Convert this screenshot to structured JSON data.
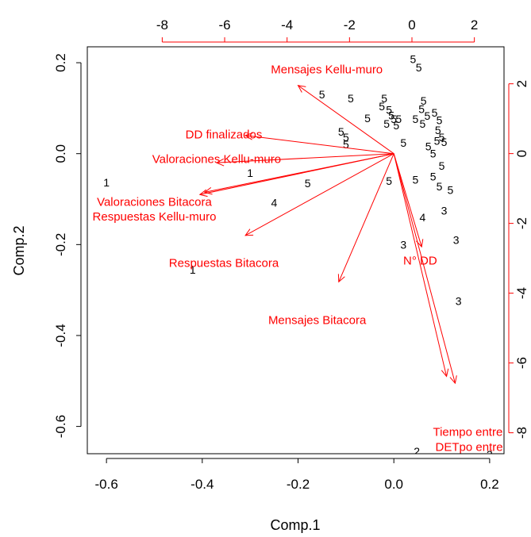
{
  "chart_data": {
    "type": "scatter",
    "subtype": "biplot",
    "xlabel": "Comp.1",
    "ylabel": "Comp.2",
    "xlim": [
      -0.64,
      0.23
    ],
    "ylim": [
      -0.66,
      0.235
    ],
    "x_ticks": [
      "-0.6",
      "-0.4",
      "-0.2",
      "0.0",
      "0.2"
    ],
    "x_tick_values": [
      -0.6,
      -0.4,
      -0.2,
      0.0,
      0.2
    ],
    "y_ticks": [
      "-0.6",
      "-0.4",
      "-0.2",
      "0.0",
      "0.2"
    ],
    "y_tick_values": [
      -0.6,
      -0.4,
      -0.2,
      0.0,
      0.2
    ],
    "top_ticks": [
      "-8",
      "-6",
      "-4",
      "-2",
      "0",
      "2"
    ],
    "top_tick_values": [
      -8,
      -6,
      -4,
      -2,
      0,
      2
    ],
    "right_ticks": [
      "2",
      "0",
      "-2",
      "-4",
      "-6",
      "-8"
    ],
    "right_tick_values": [
      2,
      0,
      -2,
      -4,
      -6,
      -8
    ],
    "secondary_xlim": [
      -10.4,
      2.95
    ],
    "secondary_ylim": [
      -8.6,
      3.06
    ],
    "grid": false,
    "colors": {
      "observations": "#000000",
      "variables": "#ff0000"
    },
    "observations": [
      {
        "label": "1",
        "x": -0.6,
        "y": -0.063
      },
      {
        "label": "1",
        "x": -0.3,
        "y": -0.042
      },
      {
        "label": "1",
        "x": -0.42,
        "y": -0.255
      },
      {
        "label": "4",
        "x": -0.25,
        "y": -0.108
      },
      {
        "label": "5",
        "x": -0.18,
        "y": -0.065
      },
      {
        "label": "5",
        "x": -0.15,
        "y": 0.13
      },
      {
        "label": "5",
        "x": -0.09,
        "y": 0.122
      },
      {
        "label": "5",
        "x": -0.11,
        "y": 0.048
      },
      {
        "label": "5",
        "x": -0.1,
        "y": 0.036
      },
      {
        "label": "5",
        "x": -0.1,
        "y": 0.02
      },
      {
        "label": "5",
        "x": -0.055,
        "y": 0.078
      },
      {
        "label": "5",
        "x": -0.02,
        "y": 0.122
      },
      {
        "label": "5",
        "x": -0.025,
        "y": 0.104
      },
      {
        "label": "5",
        "x": -0.01,
        "y": 0.096
      },
      {
        "label": "5",
        "x": -0.005,
        "y": 0.084
      },
      {
        "label": "5",
        "x": 0.0,
        "y": 0.076
      },
      {
        "label": "5",
        "x": -0.015,
        "y": 0.066
      },
      {
        "label": "5",
        "x": 0.005,
        "y": 0.062
      },
      {
        "label": "5",
        "x": 0.01,
        "y": 0.076
      },
      {
        "label": "5",
        "x": 0.02,
        "y": 0.024
      },
      {
        "label": "5",
        "x": -0.01,
        "y": -0.06
      },
      {
        "label": "5",
        "x": 0.04,
        "y": 0.208
      },
      {
        "label": "5",
        "x": 0.052,
        "y": 0.19
      },
      {
        "label": "5",
        "x": 0.062,
        "y": 0.116
      },
      {
        "label": "5",
        "x": 0.058,
        "y": 0.098
      },
      {
        "label": "5",
        "x": 0.045,
        "y": 0.076
      },
      {
        "label": "5",
        "x": 0.06,
        "y": 0.066
      },
      {
        "label": "5",
        "x": 0.07,
        "y": 0.083
      },
      {
        "label": "5",
        "x": 0.085,
        "y": 0.09
      },
      {
        "label": "5",
        "x": 0.095,
        "y": 0.074
      },
      {
        "label": "5",
        "x": 0.092,
        "y": 0.052
      },
      {
        "label": "5",
        "x": 0.1,
        "y": 0.036
      },
      {
        "label": "5",
        "x": 0.105,
        "y": 0.026
      },
      {
        "label": "5",
        "x": 0.09,
        "y": 0.028
      },
      {
        "label": "5",
        "x": 0.072,
        "y": 0.016
      },
      {
        "label": "5",
        "x": 0.082,
        "y": 0.0
      },
      {
        "label": "5",
        "x": 0.1,
        "y": -0.027
      },
      {
        "label": "5",
        "x": 0.045,
        "y": -0.057
      },
      {
        "label": "5",
        "x": 0.082,
        "y": -0.05
      },
      {
        "label": "5",
        "x": 0.095,
        "y": -0.072
      },
      {
        "label": "5",
        "x": 0.118,
        "y": -0.08
      },
      {
        "label": "4",
        "x": 0.06,
        "y": -0.14
      },
      {
        "label": "3",
        "x": 0.105,
        "y": -0.125
      },
      {
        "label": "3",
        "x": 0.02,
        "y": -0.2
      },
      {
        "label": "3",
        "x": 0.13,
        "y": -0.19
      },
      {
        "label": "3",
        "x": 0.135,
        "y": -0.324
      },
      {
        "label": "2",
        "x": 0.048,
        "y": -0.655
      },
      {
        "label": "3",
        "x": 0.2,
        "y": -0.662
      }
    ],
    "variables": [
      {
        "name": "Mensajes Kellu-muro",
        "x": -0.2,
        "y": 0.15,
        "lx": -0.14,
        "ly": 0.185
      },
      {
        "name": "DD finalizados",
        "x": -0.31,
        "y": 0.04,
        "lx": -0.355,
        "ly": 0.042
      },
      {
        "name": "Valoraciones Kellu-muro",
        "x": -0.37,
        "y": -0.02,
        "lx": -0.37,
        "ly": -0.012
      },
      {
        "name": "Valoraciones Bitacora",
        "x": -0.395,
        "y": -0.085,
        "lx": -0.5,
        "ly": -0.106
      },
      {
        "name": "Respuestas Kellu-muro",
        "x": -0.405,
        "y": -0.09,
        "lx": -0.5,
        "ly": -0.138
      },
      {
        "name": "Respuestas Bitacora",
        "x": -0.31,
        "y": -0.18,
        "lx": -0.355,
        "ly": -0.24
      },
      {
        "name": "Mensajes Bitacora",
        "x": -0.115,
        "y": -0.282,
        "lx": -0.16,
        "ly": -0.366
      },
      {
        "name": "N° DD",
        "x": 0.058,
        "y": -0.205,
        "lx": 0.055,
        "ly": -0.235
      },
      {
        "name": "Tiempo entre sesi",
        "x": 0.128,
        "y": -0.505,
        "lx": 0.18,
        "ly": -0.612
      },
      {
        "name": "DETpo entre ses",
        "x": 0.11,
        "y": -0.49,
        "lx": 0.18,
        "ly": -0.645
      }
    ]
  }
}
